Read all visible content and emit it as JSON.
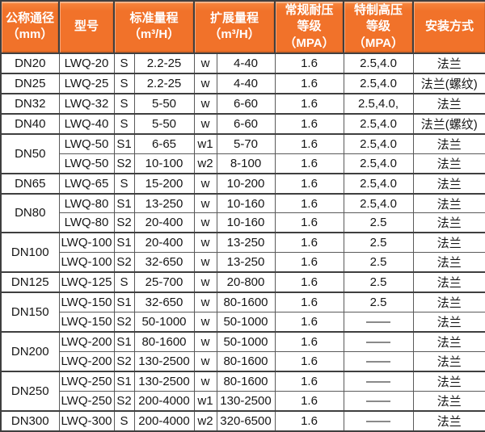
{
  "colors": {
    "header_bg": "#f1722a",
    "header_text": "#ffffff",
    "grid": "#3f3f3f",
    "body_text": "#161616"
  },
  "table": {
    "headers": [
      {
        "label": "公称通径\n（mm）"
      },
      {
        "label": "型号"
      },
      {
        "label": "标准量程\n（m³/H）"
      },
      {
        "label": "扩展量程\n（m³/H）"
      },
      {
        "label": "常规耐压\n等级（MPA）"
      },
      {
        "label": "特制高压\n等级（MPA）"
      },
      {
        "label": "安装方式"
      }
    ],
    "rows": [
      {
        "dn": "DN20",
        "dn_rowspan": 1,
        "model": "LWQ-20",
        "s": "S",
        "std": "2.2-25",
        "w": "w",
        "ext": "4-40",
        "normal": "1.6",
        "high": "2.5,4.0",
        "install": "法兰"
      },
      {
        "dn": "DN25",
        "dn_rowspan": 1,
        "model": "LWQ-25",
        "s": "S",
        "std": "2.2-25",
        "w": "w",
        "ext": "4-40",
        "normal": "1.6",
        "high": "2.5,4.0",
        "install": "法兰(螺纹)"
      },
      {
        "dn": "DN32",
        "dn_rowspan": 1,
        "model": "LWQ-32",
        "s": "S",
        "std": "5-50",
        "w": "w",
        "ext": "6-60",
        "normal": "1.6",
        "high": "2.5,4.0,",
        "install": "法兰"
      },
      {
        "dn": "DN40",
        "dn_rowspan": 1,
        "model": "LWQ-40",
        "s": "S",
        "std": "5-50",
        "w": "w",
        "ext": "6-60",
        "normal": "1.6",
        "high": "2.5,4.0",
        "install": "法兰(螺纹)"
      },
      {
        "dn": "DN50",
        "dn_rowspan": 2,
        "model": "LWQ-50",
        "s": "S1",
        "std": "6-65",
        "w": "w1",
        "ext": "5-70",
        "normal": "1.6",
        "high": "2.5,4.0",
        "install": "法兰"
      },
      {
        "model": "LWQ-50",
        "s": "S2",
        "std": "10-100",
        "w": "w2",
        "ext": "8-100",
        "normal": "1.6",
        "high": "2.5,4.0",
        "install": "法兰"
      },
      {
        "dn": "DN65",
        "dn_rowspan": 1,
        "model": "LWQ-65",
        "s": "S",
        "std": "15-200",
        "w": "w",
        "ext": "10-200",
        "normal": "1.6",
        "high": "2.5,4.0",
        "install": "法兰"
      },
      {
        "dn": "DN80",
        "dn_rowspan": 2,
        "model": "LWQ-80",
        "s": "S1",
        "std": "13-250",
        "w": "w",
        "ext": "10-160",
        "normal": "1.6",
        "high": "2.5,4.0",
        "install": "法兰"
      },
      {
        "model": "LWQ-80",
        "s": "S2",
        "std": "20-400",
        "w": "w",
        "ext": "10-160",
        "normal": "1.6",
        "high": "2.5",
        "install": "法兰"
      },
      {
        "dn": "DN100",
        "dn_rowspan": 2,
        "model": "LWQ-100",
        "s": "S1",
        "std": "20-400",
        "w": "w",
        "ext": "13-250",
        "normal": "1.6",
        "high": "2.5",
        "install": "法兰"
      },
      {
        "model": "LWQ-100",
        "s": "S2",
        "std": "32-650",
        "w": "w",
        "ext": "13-250",
        "normal": "1.6",
        "high": "2.5",
        "install": "法兰"
      },
      {
        "dn": "DN125",
        "dn_rowspan": 1,
        "model": "LWQ-125",
        "s": "S",
        "std": "25-700",
        "w": "w",
        "ext": "20-800",
        "normal": "1.6",
        "high": "2.5",
        "install": "法兰"
      },
      {
        "dn": "DN150",
        "dn_rowspan": 2,
        "model": "LWQ-150",
        "s": "S1",
        "std": "32-650",
        "w": "w",
        "ext": "80-1600",
        "normal": "1.6",
        "high": "2.5",
        "install": "法兰"
      },
      {
        "model": "LWQ-150",
        "s": "S2",
        "std": "50-1000",
        "w": "w",
        "ext": "50-1000",
        "normal": "1.6",
        "high": "——",
        "install": "法兰"
      },
      {
        "dn": "DN200",
        "dn_rowspan": 2,
        "model": "LWQ-200",
        "s": "S1",
        "std": "80-1600",
        "w": "w",
        "ext": "50-1000",
        "normal": "1.6",
        "high": "——",
        "install": "法兰"
      },
      {
        "model": "LWQ-200",
        "s": "S2",
        "std": "130-2500",
        "w": "w",
        "ext": "80-1600",
        "normal": "1.6",
        "high": "——",
        "install": "法兰"
      },
      {
        "dn": "DN250",
        "dn_rowspan": 2,
        "model": "LWQ-250",
        "s": "S1",
        "std": "130-2500",
        "w": "w",
        "ext": "80-1600",
        "normal": "1.6",
        "high": "——",
        "install": "法兰"
      },
      {
        "model": "LWQ-250",
        "s": "S2",
        "std": "200-4000",
        "w": "w1",
        "ext": "130-2500",
        "normal": "1.6",
        "high": "——",
        "install": "法兰"
      },
      {
        "dn": "DN300",
        "dn_rowspan": 1,
        "model": "LWQ-300",
        "s": "S",
        "std": "200-4000",
        "w": "w2",
        "ext": "320-6500",
        "normal": "1.6",
        "high": "——",
        "install": "法兰"
      }
    ]
  }
}
